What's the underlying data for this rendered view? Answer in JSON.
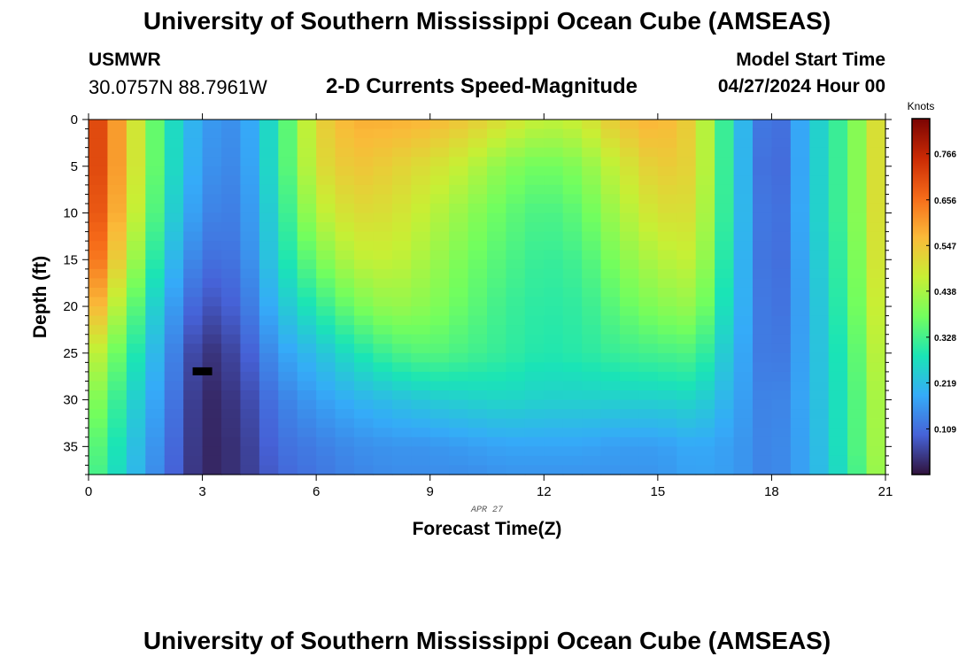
{
  "header": {
    "title": "University of Southern Mississippi Ocean Cube (AMSEAS)",
    "station": "USMWR",
    "coords": "30.0757N  88.7961W",
    "chart_title": "2-D Currents Speed-Magnitude",
    "start_label": "Model Start Time",
    "start_value": "04/27/2024 Hour 00"
  },
  "footer": {
    "title": "University of Southern Mississippi Ocean Cube (AMSEAS)"
  },
  "chart_data": {
    "type": "heatmap",
    "title": "2-D Currents Speed-Magnitude",
    "xlabel": "Forecast Time(Z)",
    "ylabel": "Depth (ft)",
    "date_label": "APR 27",
    "xlim": [
      0,
      21
    ],
    "ylim": [
      0,
      38
    ],
    "xticks": [
      0,
      3,
      6,
      9,
      12,
      15,
      18,
      21
    ],
    "yticks": [
      0,
      5,
      10,
      15,
      20,
      25,
      30,
      35
    ],
    "colorbar": {
      "label": "Knots",
      "ticks": [
        0.109,
        0.219,
        0.328,
        0.438,
        0.547,
        0.656,
        0.766
      ],
      "range": [
        0.0,
        0.85
      ],
      "colors": [
        "#30123b",
        "#4662d7",
        "#35abf8",
        "#1ae4b6",
        "#72fe5e",
        "#c8ef34",
        "#faba39",
        "#f66b19",
        "#ca2a04",
        "#7a0403"
      ]
    },
    "x_hours": [
      0,
      1,
      2,
      3,
      4,
      5,
      6,
      7,
      8,
      9,
      10,
      11,
      12,
      13,
      14,
      15,
      16,
      17,
      18,
      19,
      20,
      21
    ],
    "depths_ft": [
      0,
      5,
      10,
      15,
      20,
      25,
      30,
      35,
      38
    ],
    "speed_knots_by_depth": [
      [
        0.76,
        0.55,
        0.3,
        0.17,
        0.15,
        0.3,
        0.52,
        0.58,
        0.58,
        0.57,
        0.54,
        0.5,
        0.46,
        0.48,
        0.55,
        0.58,
        0.52,
        0.25,
        0.08,
        0.22,
        0.35,
        0.55
      ],
      [
        0.76,
        0.55,
        0.3,
        0.16,
        0.14,
        0.3,
        0.5,
        0.55,
        0.53,
        0.5,
        0.46,
        0.4,
        0.37,
        0.4,
        0.48,
        0.54,
        0.52,
        0.25,
        0.07,
        0.22,
        0.35,
        0.55
      ],
      [
        0.74,
        0.53,
        0.28,
        0.14,
        0.13,
        0.28,
        0.45,
        0.51,
        0.5,
        0.46,
        0.41,
        0.36,
        0.33,
        0.36,
        0.44,
        0.5,
        0.5,
        0.25,
        0.08,
        0.22,
        0.35,
        0.55
      ],
      [
        0.7,
        0.48,
        0.24,
        0.11,
        0.12,
        0.26,
        0.38,
        0.46,
        0.47,
        0.43,
        0.38,
        0.34,
        0.31,
        0.33,
        0.4,
        0.45,
        0.47,
        0.24,
        0.08,
        0.21,
        0.34,
        0.54
      ],
      [
        0.62,
        0.4,
        0.2,
        0.07,
        0.1,
        0.22,
        0.3,
        0.38,
        0.42,
        0.4,
        0.36,
        0.32,
        0.3,
        0.31,
        0.36,
        0.4,
        0.42,
        0.23,
        0.09,
        0.2,
        0.33,
        0.52
      ],
      [
        0.5,
        0.33,
        0.17,
        0.03,
        0.07,
        0.17,
        0.22,
        0.28,
        0.33,
        0.35,
        0.33,
        0.31,
        0.29,
        0.3,
        0.32,
        0.33,
        0.34,
        0.21,
        0.1,
        0.2,
        0.31,
        0.5
      ],
      [
        0.43,
        0.28,
        0.15,
        0.02,
        0.05,
        0.13,
        0.17,
        0.2,
        0.22,
        0.24,
        0.25,
        0.26,
        0.25,
        0.25,
        0.25,
        0.25,
        0.26,
        0.19,
        0.12,
        0.2,
        0.3,
        0.48
      ],
      [
        0.38,
        0.25,
        0.13,
        0.02,
        0.04,
        0.11,
        0.13,
        0.15,
        0.16,
        0.16,
        0.17,
        0.18,
        0.18,
        0.18,
        0.17,
        0.17,
        0.19,
        0.17,
        0.13,
        0.19,
        0.3,
        0.47
      ],
      [
        0.36,
        0.24,
        0.12,
        0.02,
        0.04,
        0.1,
        0.12,
        0.14,
        0.15,
        0.15,
        0.15,
        0.16,
        0.16,
        0.16,
        0.16,
        0.16,
        0.18,
        0.17,
        0.13,
        0.19,
        0.29,
        0.46
      ]
    ],
    "marker": {
      "hour": 3.0,
      "depth_ft": 27
    }
  }
}
